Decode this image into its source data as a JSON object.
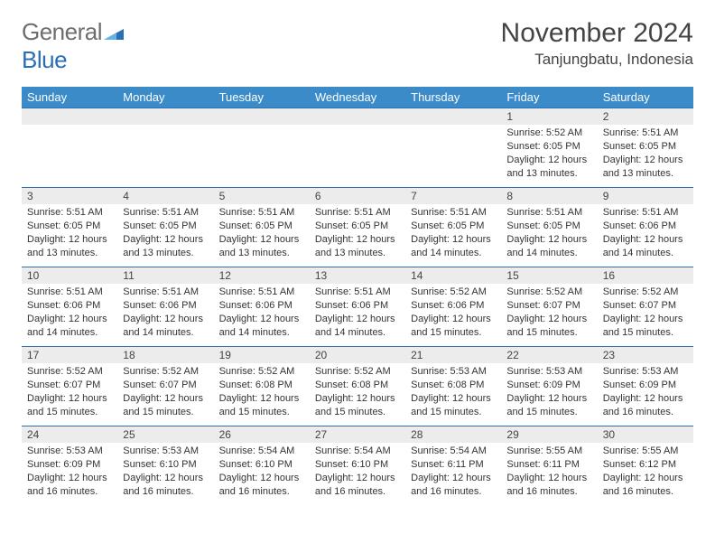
{
  "logo": {
    "part1": "General",
    "part2": "Blue"
  },
  "title": "November 2024",
  "location": "Tanjungbatu, Indonesia",
  "colors": {
    "header_bg": "#3b8bc9",
    "border": "#2a6fb5",
    "daybar_bg": "#ececec",
    "text": "#333333",
    "logo_gray": "#6e6e6e",
    "logo_blue": "#2a6fb5"
  },
  "dayNames": [
    "Sunday",
    "Monday",
    "Tuesday",
    "Wednesday",
    "Thursday",
    "Friday",
    "Saturday"
  ],
  "weeks": [
    [
      {
        "n": "",
        "lines": []
      },
      {
        "n": "",
        "lines": []
      },
      {
        "n": "",
        "lines": []
      },
      {
        "n": "",
        "lines": []
      },
      {
        "n": "",
        "lines": []
      },
      {
        "n": "1",
        "lines": [
          "Sunrise: 5:52 AM",
          "Sunset: 6:05 PM",
          "Daylight: 12 hours and 13 minutes."
        ]
      },
      {
        "n": "2",
        "lines": [
          "Sunrise: 5:51 AM",
          "Sunset: 6:05 PM",
          "Daylight: 12 hours and 13 minutes."
        ]
      }
    ],
    [
      {
        "n": "3",
        "lines": [
          "Sunrise: 5:51 AM",
          "Sunset: 6:05 PM",
          "Daylight: 12 hours and 13 minutes."
        ]
      },
      {
        "n": "4",
        "lines": [
          "Sunrise: 5:51 AM",
          "Sunset: 6:05 PM",
          "Daylight: 12 hours and 13 minutes."
        ]
      },
      {
        "n": "5",
        "lines": [
          "Sunrise: 5:51 AM",
          "Sunset: 6:05 PM",
          "Daylight: 12 hours and 13 minutes."
        ]
      },
      {
        "n": "6",
        "lines": [
          "Sunrise: 5:51 AM",
          "Sunset: 6:05 PM",
          "Daylight: 12 hours and 13 minutes."
        ]
      },
      {
        "n": "7",
        "lines": [
          "Sunrise: 5:51 AM",
          "Sunset: 6:05 PM",
          "Daylight: 12 hours and 14 minutes."
        ]
      },
      {
        "n": "8",
        "lines": [
          "Sunrise: 5:51 AM",
          "Sunset: 6:05 PM",
          "Daylight: 12 hours and 14 minutes."
        ]
      },
      {
        "n": "9",
        "lines": [
          "Sunrise: 5:51 AM",
          "Sunset: 6:06 PM",
          "Daylight: 12 hours and 14 minutes."
        ]
      }
    ],
    [
      {
        "n": "10",
        "lines": [
          "Sunrise: 5:51 AM",
          "Sunset: 6:06 PM",
          "Daylight: 12 hours and 14 minutes."
        ]
      },
      {
        "n": "11",
        "lines": [
          "Sunrise: 5:51 AM",
          "Sunset: 6:06 PM",
          "Daylight: 12 hours and 14 minutes."
        ]
      },
      {
        "n": "12",
        "lines": [
          "Sunrise: 5:51 AM",
          "Sunset: 6:06 PM",
          "Daylight: 12 hours and 14 minutes."
        ]
      },
      {
        "n": "13",
        "lines": [
          "Sunrise: 5:51 AM",
          "Sunset: 6:06 PM",
          "Daylight: 12 hours and 14 minutes."
        ]
      },
      {
        "n": "14",
        "lines": [
          "Sunrise: 5:52 AM",
          "Sunset: 6:06 PM",
          "Daylight: 12 hours and 15 minutes."
        ]
      },
      {
        "n": "15",
        "lines": [
          "Sunrise: 5:52 AM",
          "Sunset: 6:07 PM",
          "Daylight: 12 hours and 15 minutes."
        ]
      },
      {
        "n": "16",
        "lines": [
          "Sunrise: 5:52 AM",
          "Sunset: 6:07 PM",
          "Daylight: 12 hours and 15 minutes."
        ]
      }
    ],
    [
      {
        "n": "17",
        "lines": [
          "Sunrise: 5:52 AM",
          "Sunset: 6:07 PM",
          "Daylight: 12 hours and 15 minutes."
        ]
      },
      {
        "n": "18",
        "lines": [
          "Sunrise: 5:52 AM",
          "Sunset: 6:07 PM",
          "Daylight: 12 hours and 15 minutes."
        ]
      },
      {
        "n": "19",
        "lines": [
          "Sunrise: 5:52 AM",
          "Sunset: 6:08 PM",
          "Daylight: 12 hours and 15 minutes."
        ]
      },
      {
        "n": "20",
        "lines": [
          "Sunrise: 5:52 AM",
          "Sunset: 6:08 PM",
          "Daylight: 12 hours and 15 minutes."
        ]
      },
      {
        "n": "21",
        "lines": [
          "Sunrise: 5:53 AM",
          "Sunset: 6:08 PM",
          "Daylight: 12 hours and 15 minutes."
        ]
      },
      {
        "n": "22",
        "lines": [
          "Sunrise: 5:53 AM",
          "Sunset: 6:09 PM",
          "Daylight: 12 hours and 15 minutes."
        ]
      },
      {
        "n": "23",
        "lines": [
          "Sunrise: 5:53 AM",
          "Sunset: 6:09 PM",
          "Daylight: 12 hours and 16 minutes."
        ]
      }
    ],
    [
      {
        "n": "24",
        "lines": [
          "Sunrise: 5:53 AM",
          "Sunset: 6:09 PM",
          "Daylight: 12 hours and 16 minutes."
        ]
      },
      {
        "n": "25",
        "lines": [
          "Sunrise: 5:53 AM",
          "Sunset: 6:10 PM",
          "Daylight: 12 hours and 16 minutes."
        ]
      },
      {
        "n": "26",
        "lines": [
          "Sunrise: 5:54 AM",
          "Sunset: 6:10 PM",
          "Daylight: 12 hours and 16 minutes."
        ]
      },
      {
        "n": "27",
        "lines": [
          "Sunrise: 5:54 AM",
          "Sunset: 6:10 PM",
          "Daylight: 12 hours and 16 minutes."
        ]
      },
      {
        "n": "28",
        "lines": [
          "Sunrise: 5:54 AM",
          "Sunset: 6:11 PM",
          "Daylight: 12 hours and 16 minutes."
        ]
      },
      {
        "n": "29",
        "lines": [
          "Sunrise: 5:55 AM",
          "Sunset: 6:11 PM",
          "Daylight: 12 hours and 16 minutes."
        ]
      },
      {
        "n": "30",
        "lines": [
          "Sunrise: 5:55 AM",
          "Sunset: 6:12 PM",
          "Daylight: 12 hours and 16 minutes."
        ]
      }
    ]
  ]
}
